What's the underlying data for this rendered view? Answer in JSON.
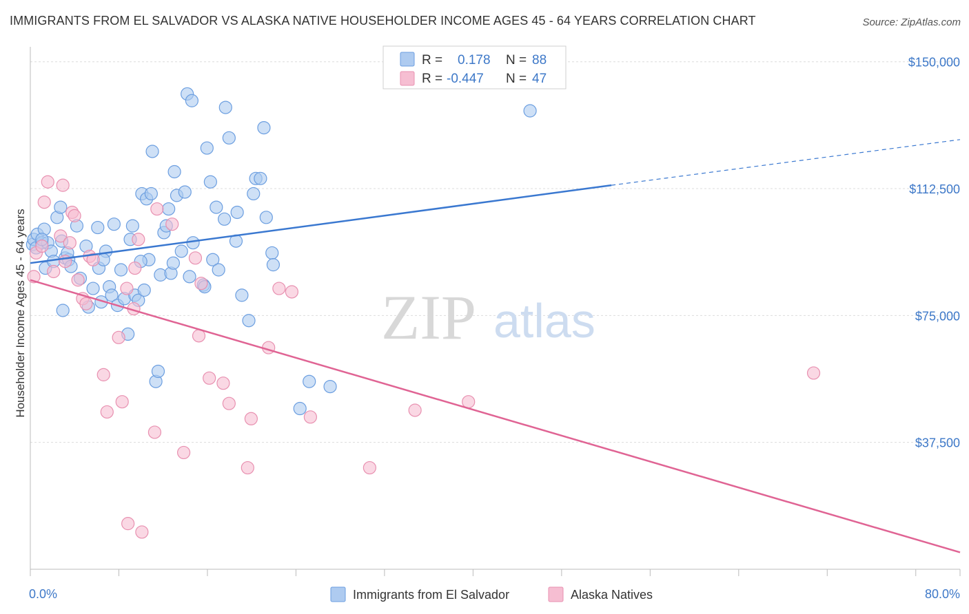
{
  "title": "IMMIGRANTS FROM EL SALVADOR VS ALASKA NATIVE HOUSEHOLDER INCOME AGES 45 - 64 YEARS CORRELATION CHART",
  "source": "Source: ZipAtlas.com",
  "watermark": {
    "zip": "ZIP",
    "atlas": "atlas"
  },
  "colors": {
    "blue": "#3a78d0",
    "pink": "#e06494",
    "blue_fill": "#aecbf0",
    "pink_fill": "#f6bed2"
  },
  "legend": {
    "rows": [
      {
        "r_label": "R =",
        "r_value": "0.178",
        "n_label": "N =",
        "n_value": "88"
      },
      {
        "r_label": "R =",
        "r_value": "-0.447",
        "n_label": "N =",
        "n_value": "47"
      }
    ]
  },
  "chart_data": {
    "type": "scatter",
    "title": "IMMIGRANTS FROM EL SALVADOR VS ALASKA NATIVE HOUSEHOLDER INCOME AGES 45 - 64 YEARS CORRELATION CHART",
    "xlabel": "",
    "ylabel": "Householder Income Ages 45 - 64 years",
    "xlim": [
      0,
      80
    ],
    "ylim": [
      0,
      153000
    ],
    "x_tick_labels": [
      "0.0%",
      "80.0%"
    ],
    "y_ticks": [
      37500,
      75000,
      112500,
      150000
    ],
    "y_tick_labels": [
      "$37,500",
      "$75,000",
      "$112,500",
      "$150,000"
    ],
    "grid": true,
    "legend_position": "top-center",
    "series": [
      {
        "name": "Immigrants from El Salvador",
        "color": "#3a78d0",
        "trend": {
          "x0": 0,
          "y0": 90500,
          "x1": 50,
          "y1": 113500,
          "dashed_to_x": 80,
          "dashed_to_y": 127000
        },
        "points": [
          [
            0.2,
            96000
          ],
          [
            0.3,
            97500
          ],
          [
            0.5,
            95000
          ],
          [
            0.6,
            99000
          ],
          [
            1.0,
            96500
          ],
          [
            1.2,
            100500
          ],
          [
            1.3,
            89000
          ],
          [
            1.5,
            96500
          ],
          [
            1.8,
            94000
          ],
          [
            2.0,
            91000
          ],
          [
            2.3,
            104000
          ],
          [
            2.6,
            107000
          ],
          [
            2.8,
            76500
          ],
          [
            3.0,
            92000
          ],
          [
            3.3,
            91500
          ],
          [
            3.5,
            89500
          ],
          [
            4.0,
            101500
          ],
          [
            4.3,
            86000
          ],
          [
            4.8,
            95500
          ],
          [
            5.0,
            77500
          ],
          [
            5.4,
            83000
          ],
          [
            5.8,
            101000
          ],
          [
            6.1,
            79000
          ],
          [
            6.5,
            94000
          ],
          [
            6.8,
            83500
          ],
          [
            7.0,
            81000
          ],
          [
            7.2,
            102000
          ],
          [
            7.5,
            78000
          ],
          [
            7.8,
            88500
          ],
          [
            8.1,
            80000
          ],
          [
            8.4,
            69500
          ],
          [
            8.6,
            97500
          ],
          [
            8.8,
            101500
          ],
          [
            9.0,
            81000
          ],
          [
            9.3,
            79500
          ],
          [
            9.6,
            111000
          ],
          [
            9.8,
            82500
          ],
          [
            10.0,
            109500
          ],
          [
            10.2,
            91500
          ],
          [
            10.4,
            111000
          ],
          [
            10.5,
            123500
          ],
          [
            10.8,
            55500
          ],
          [
            11.0,
            58500
          ],
          [
            11.2,
            87000
          ],
          [
            11.5,
            99500
          ],
          [
            11.7,
            101500
          ],
          [
            11.9,
            106500
          ],
          [
            12.1,
            87500
          ],
          [
            12.4,
            117500
          ],
          [
            12.6,
            110500
          ],
          [
            13.0,
            94000
          ],
          [
            13.3,
            111500
          ],
          [
            13.5,
            140500
          ],
          [
            13.7,
            86500
          ],
          [
            13.9,
            138500
          ],
          [
            14.0,
            96500
          ],
          [
            14.9,
            84000
          ],
          [
            15.0,
            83500
          ],
          [
            15.2,
            124500
          ],
          [
            15.5,
            114500
          ],
          [
            15.7,
            91500
          ],
          [
            16.0,
            107000
          ],
          [
            16.2,
            88500
          ],
          [
            16.7,
            103500
          ],
          [
            16.8,
            136500
          ],
          [
            17.1,
            127500
          ],
          [
            17.7,
            97000
          ],
          [
            17.8,
            105500
          ],
          [
            18.2,
            81000
          ],
          [
            18.8,
            73500
          ],
          [
            19.2,
            111000
          ],
          [
            19.4,
            115500
          ],
          [
            19.8,
            115500
          ],
          [
            20.1,
            130500
          ],
          [
            20.3,
            104000
          ],
          [
            20.8,
            93500
          ],
          [
            20.9,
            90000
          ],
          [
            23.2,
            47500
          ],
          [
            24.0,
            55500
          ],
          [
            25.8,
            54000
          ],
          [
            43.0,
            135500
          ],
          [
            1.0,
            97500
          ],
          [
            2.7,
            97000
          ],
          [
            3.2,
            93500
          ],
          [
            5.9,
            89000
          ],
          [
            6.3,
            91500
          ],
          [
            9.5,
            91000
          ],
          [
            12.3,
            90500
          ]
        ]
      },
      {
        "name": "Alaska Natives",
        "color": "#e06494",
        "trend": {
          "x0": 0,
          "y0": 85500,
          "x1": 80,
          "y1": 5000
        },
        "points": [
          [
            0.3,
            86500
          ],
          [
            0.5,
            93500
          ],
          [
            1.0,
            95500
          ],
          [
            1.2,
            108500
          ],
          [
            1.5,
            114500
          ],
          [
            2.0,
            88000
          ],
          [
            2.6,
            98500
          ],
          [
            2.8,
            113500
          ],
          [
            3.4,
            96500
          ],
          [
            3.6,
            105500
          ],
          [
            3.8,
            104500
          ],
          [
            4.1,
            85500
          ],
          [
            4.5,
            80000
          ],
          [
            4.8,
            78500
          ],
          [
            5.1,
            92500
          ],
          [
            5.4,
            91500
          ],
          [
            6.3,
            57500
          ],
          [
            6.6,
            46500
          ],
          [
            7.6,
            68500
          ],
          [
            7.9,
            49500
          ],
          [
            8.3,
            83000
          ],
          [
            8.4,
            13500
          ],
          [
            8.9,
            77000
          ],
          [
            9.0,
            89000
          ],
          [
            9.3,
            97500
          ],
          [
            9.6,
            11000
          ],
          [
            10.7,
            40500
          ],
          [
            10.9,
            106500
          ],
          [
            12.2,
            102000
          ],
          [
            13.2,
            34500
          ],
          [
            14.2,
            92000
          ],
          [
            14.5,
            69000
          ],
          [
            14.7,
            84500
          ],
          [
            15.4,
            56500
          ],
          [
            16.6,
            55000
          ],
          [
            17.1,
            49000
          ],
          [
            18.7,
            30000
          ],
          [
            19.0,
            44500
          ],
          [
            20.5,
            65500
          ],
          [
            21.4,
            83000
          ],
          [
            22.5,
            82000
          ],
          [
            24.1,
            45000
          ],
          [
            29.2,
            30000
          ],
          [
            33.1,
            47000
          ],
          [
            37.7,
            49500
          ],
          [
            67.4,
            58000
          ],
          [
            3.0,
            91000
          ]
        ]
      }
    ]
  },
  "bottom_legend": {
    "items": [
      {
        "label": "Immigrants from El Salvador"
      },
      {
        "label": "Alaska Natives"
      }
    ]
  }
}
